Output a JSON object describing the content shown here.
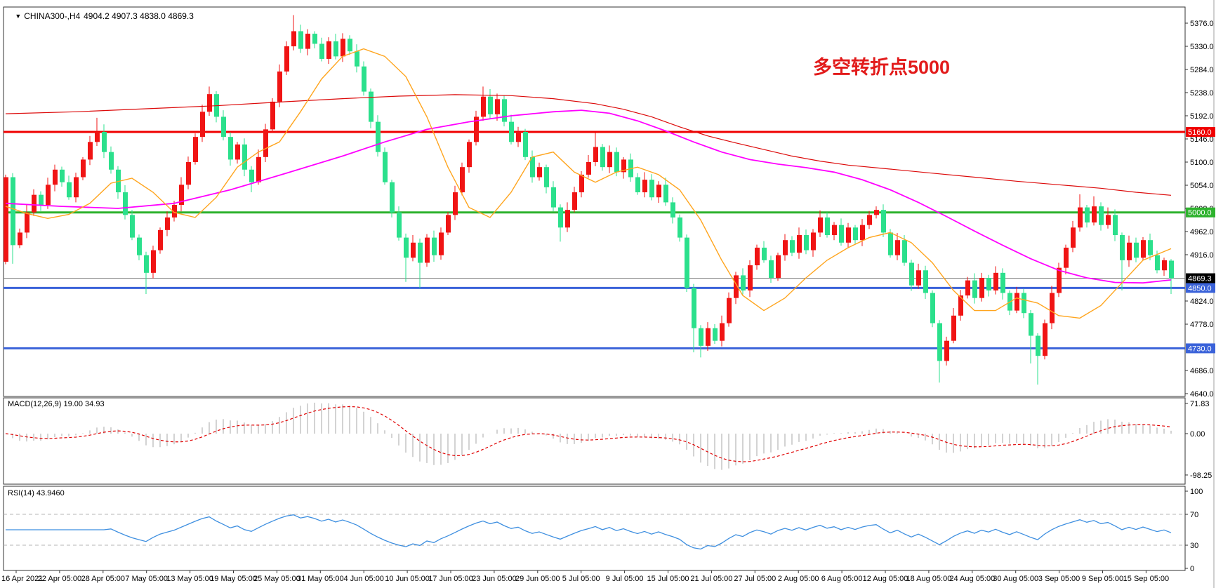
{
  "header": {
    "symbol": "CHINA300-,H4",
    "ohlc": "4904.2 4907.3 4838.0 4869.3"
  },
  "annotation": {
    "text": "多空转折点5000",
    "color": "#E21B1B"
  },
  "chart_data": {
    "type": "candlestick",
    "title": "CHINA300-,H4",
    "timeframe": "H4",
    "last_bar": {
      "open": 4904.2,
      "high": 4907.3,
      "low": 4838.0,
      "close": 4869.3
    },
    "note_up_down_colors": "Chinese convention: red = up, green = down",
    "colors": {
      "up": "#F01414",
      "down": "#2BE08C",
      "ma_slow": "#DC0A0A",
      "ma_mid": "#FF00FF",
      "ma_fast": "#FFA51E",
      "macd_hist": "#C8C8C8",
      "macd_signal": "#E00000",
      "rsi_line": "#3E8FE0",
      "level_dashed": "#B4B4B4",
      "border": "#333333",
      "current_line": "#808080",
      "text": "#000000"
    },
    "y_ticks": [
      5376,
      5330,
      5284,
      5238,
      5192,
      5146,
      5100,
      5054,
      5008,
      4962,
      4916,
      4824,
      4778,
      4686,
      4640
    ],
    "price_lines": [
      {
        "value": 5160.0,
        "label": "5160.0",
        "color": "#F00000",
        "width": 3
      },
      {
        "value": 5000.0,
        "label": "5000.0",
        "color": "#2DB22D",
        "width": 3
      },
      {
        "value": 4850.0,
        "label": "4850.0",
        "color": "#3A62D9",
        "width": 3
      },
      {
        "value": 4730.0,
        "label": "4730.0",
        "color": "#3A62D9",
        "width": 3
      }
    ],
    "current_price": {
      "value": 4869.3,
      "label": "4869.3",
      "badge_bg": "#000000"
    },
    "x_labels": [
      "16 Apr 2021",
      "22 Apr 05:00",
      "28 Apr 05:00",
      "7 May 05:00",
      "13 May 05:00",
      "19 May 05:00",
      "25 May 05:00",
      "31 May 05:00",
      "4 Jun 05:00",
      "10 Jun 05:00",
      "17 Jun 05:00",
      "23 Jun 05:00",
      "29 Jun 05:00",
      "5 Jul 05:00",
      "9 Jul 05:00",
      "15 Jul 05:00",
      "21 Jul 05:00",
      "27 Jul 05:00",
      "2 Aug 05:00",
      "6 Aug 05:00",
      "12 Aug 05:00",
      "18 Aug 05:00",
      "24 Aug 05:00",
      "30 Aug 05:00",
      "3 Sep 05:00",
      "9 Sep 05:00",
      "15 Sep 05:00"
    ],
    "candles": {
      "first_open": 4902,
      "closes": [
        5070,
        4935,
        4960,
        5000,
        5035,
        5015,
        5055,
        5085,
        5060,
        5030,
        5070,
        5105,
        5140,
        5160,
        5120,
        5085,
        5040,
        4995,
        4950,
        4915,
        4880,
        4925,
        4965,
        4990,
        5015,
        5055,
        5100,
        5150,
        5200,
        5235,
        5190,
        5150,
        5105,
        5135,
        5085,
        5060,
        5110,
        5165,
        5220,
        5280,
        5330,
        5360,
        5325,
        5355,
        5335,
        5305,
        5340,
        5310,
        5345,
        5320,
        5290,
        5240,
        5180,
        5120,
        5060,
        5000,
        4950,
        4910,
        4940,
        4900,
        4950,
        4915,
        4960,
        4995,
        5040,
        5090,
        5140,
        5190,
        5230,
        5195,
        5225,
        5180,
        5140,
        5160,
        5110,
        5070,
        5090,
        5050,
        5010,
        4970,
        5005,
        5040,
        5075,
        5100,
        5130,
        5090,
        5120,
        5080,
        5105,
        5070,
        5040,
        5065,
        5030,
        5055,
        5020,
        4990,
        4950,
        4850,
        4770,
        4735,
        4770,
        4745,
        4780,
        4830,
        4875,
        4845,
        4895,
        4930,
        4905,
        4870,
        4915,
        4945,
        4920,
        4955,
        4925,
        4960,
        4990,
        4955,
        4975,
        4940,
        4970,
        4945,
        4975,
        4995,
        5005,
        4960,
        4915,
        4945,
        4900,
        4855,
        4885,
        4840,
        4780,
        4705,
        4745,
        4795,
        4835,
        4865,
        4830,
        4870,
        4845,
        4880,
        4840,
        4805,
        4840,
        4800,
        4755,
        4715,
        4780,
        4840,
        4890,
        4930,
        4970,
        5010,
        4980,
        5012,
        4975,
        4995,
        4955,
        4905,
        4940,
        4910,
        4945,
        4915,
        4885,
        4905,
        4869.3
      ],
      "overrides": {
        "1": [
          5070,
          5078,
          4898,
          4935
        ],
        "13": [
          5140,
          5188,
          5132,
          5160
        ],
        "20": [
          4915,
          4922,
          4838,
          4880
        ],
        "29": [
          5200,
          5250,
          5192,
          5235
        ],
        "35": [
          5085,
          5092,
          5040,
          5060
        ],
        "41": [
          5330,
          5392,
          5322,
          5360
        ],
        "57": [
          4950,
          4958,
          4862,
          4910
        ],
        "59": [
          4940,
          4948,
          4850,
          4900
        ],
        "68": [
          5190,
          5250,
          5182,
          5230
        ],
        "79": [
          5010,
          5016,
          4942,
          4970
        ],
        "84": [
          5100,
          5158,
          5092,
          5130
        ],
        "97": [
          4950,
          4956,
          4842,
          4850
        ],
        "98": [
          4850,
          4858,
          4722,
          4770
        ],
        "99": [
          4770,
          4776,
          4712,
          4735
        ],
        "124": [
          4995,
          5012,
          4988,
          5005
        ],
        "133": [
          4780,
          4786,
          4662,
          4705
        ],
        "146": [
          4800,
          4806,
          4700,
          4755
        ],
        "147": [
          4755,
          4760,
          4658,
          4715
        ],
        "153": [
          4970,
          5036,
          4962,
          5010
        ],
        "155": [
          4980,
          5032,
          4974,
          5012
        ],
        "159": [
          4955,
          4960,
          4845,
          4905
        ],
        "166": [
          4904.2,
          4907.3,
          4838.0,
          4869.3
        ]
      }
    },
    "moving_averages": [
      {
        "name": "ma-slow-red",
        "color": "#DC0A0A",
        "width": 1.2,
        "points": [
          [
            0,
            5196
          ],
          [
            10,
            5200
          ],
          [
            20,
            5206
          ],
          [
            30,
            5212
          ],
          [
            40,
            5220
          ],
          [
            48,
            5226
          ],
          [
            56,
            5231
          ],
          [
            64,
            5234
          ],
          [
            72,
            5232
          ],
          [
            78,
            5226
          ],
          [
            84,
            5216
          ],
          [
            88,
            5205
          ],
          [
            92,
            5190
          ],
          [
            96,
            5170
          ],
          [
            100,
            5152
          ],
          [
            104,
            5138
          ],
          [
            108,
            5125
          ],
          [
            112,
            5112
          ],
          [
            116,
            5102
          ],
          [
            120,
            5094
          ],
          [
            126,
            5086
          ],
          [
            132,
            5078
          ],
          [
            138,
            5070
          ],
          [
            144,
            5062
          ],
          [
            150,
            5055
          ],
          [
            156,
            5048
          ],
          [
            161,
            5040
          ],
          [
            166,
            5034
          ]
        ]
      },
      {
        "name": "ma-mid-magenta",
        "color": "#FF00FF",
        "width": 1.8,
        "points": [
          [
            0,
            5018
          ],
          [
            8,
            5012
          ],
          [
            16,
            5008
          ],
          [
            24,
            5018
          ],
          [
            32,
            5045
          ],
          [
            40,
            5078
          ],
          [
            48,
            5112
          ],
          [
            54,
            5140
          ],
          [
            60,
            5165
          ],
          [
            66,
            5180
          ],
          [
            72,
            5192
          ],
          [
            78,
            5200
          ],
          [
            82,
            5203
          ],
          [
            86,
            5197
          ],
          [
            90,
            5182
          ],
          [
            94,
            5162
          ],
          [
            98,
            5140
          ],
          [
            102,
            5120
          ],
          [
            106,
            5105
          ],
          [
            110,
            5096
          ],
          [
            114,
            5089
          ],
          [
            118,
            5080
          ],
          [
            122,
            5065
          ],
          [
            126,
            5045
          ],
          [
            130,
            5020
          ],
          [
            134,
            4992
          ],
          [
            138,
            4963
          ],
          [
            142,
            4935
          ],
          [
            146,
            4908
          ],
          [
            150,
            4885
          ],
          [
            154,
            4870
          ],
          [
            158,
            4861
          ],
          [
            162,
            4860
          ],
          [
            166,
            4866
          ]
        ]
      },
      {
        "name": "ma-fast-orange",
        "color": "#FFA51E",
        "width": 1.4,
        "points": [
          [
            0,
            5012
          ],
          [
            3,
            4998
          ],
          [
            6,
            4988
          ],
          [
            9,
            4996
          ],
          [
            12,
            5018
          ],
          [
            15,
            5058
          ],
          [
            18,
            5068
          ],
          [
            21,
            5040
          ],
          [
            24,
            5000
          ],
          [
            27,
            4990
          ],
          [
            30,
            5030
          ],
          [
            33,
            5090
          ],
          [
            36,
            5120
          ],
          [
            39,
            5140
          ],
          [
            42,
            5200
          ],
          [
            45,
            5265
          ],
          [
            48,
            5310
          ],
          [
            51,
            5325
          ],
          [
            54,
            5310
          ],
          [
            57,
            5270
          ],
          [
            60,
            5190
          ],
          [
            63,
            5090
          ],
          [
            66,
            5010
          ],
          [
            69,
            4990
          ],
          [
            72,
            5040
          ],
          [
            75,
            5110
          ],
          [
            78,
            5120
          ],
          [
            81,
            5080
          ],
          [
            84,
            5060
          ],
          [
            87,
            5080
          ],
          [
            90,
            5090
          ],
          [
            93,
            5075
          ],
          [
            96,
            5045
          ],
          [
            99,
            4985
          ],
          [
            102,
            4905
          ],
          [
            105,
            4835
          ],
          [
            108,
            4805
          ],
          [
            111,
            4830
          ],
          [
            114,
            4870
          ],
          [
            117,
            4905
          ],
          [
            120,
            4930
          ],
          [
            123,
            4950
          ],
          [
            126,
            4960
          ],
          [
            129,
            4940
          ],
          [
            132,
            4900
          ],
          [
            135,
            4845
          ],
          [
            138,
            4805
          ],
          [
            141,
            4805
          ],
          [
            144,
            4830
          ],
          [
            147,
            4820
          ],
          [
            150,
            4795
          ],
          [
            153,
            4790
          ],
          [
            156,
            4815
          ],
          [
            159,
            4860
          ],
          [
            162,
            4905
          ],
          [
            166,
            4928
          ]
        ]
      }
    ],
    "macd": {
      "label_full": "MACD(12,26,9) 19.00 34.93",
      "params": [
        12,
        26,
        9
      ],
      "macd_value": 19.0,
      "signal_value": 34.93,
      "axis_ticks": [
        {
          "value": 71.83,
          "label": "71.83"
        },
        {
          "value": 0,
          "label": "0.00"
        },
        {
          "value": -98.25,
          "label": "-98.25"
        }
      ]
    },
    "rsi": {
      "label_full": "RSI(14) 43.9460",
      "period": 14,
      "value": 43.946,
      "axis_ticks": [
        {
          "value": 100,
          "label": "100"
        },
        {
          "value": 70,
          "label": "70"
        },
        {
          "value": 30,
          "label": "30"
        },
        {
          "value": 0,
          "label": "0"
        }
      ],
      "levels": [
        70,
        30
      ]
    }
  }
}
